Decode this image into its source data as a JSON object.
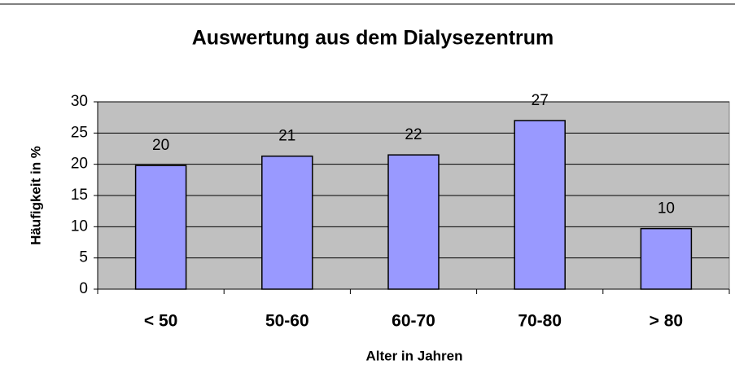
{
  "chart_data": {
    "type": "bar",
    "title": "Auswertung aus dem Dialysezentrum",
    "xlabel": "Alter in Jahren",
    "ylabel": "Häufigkeit in %",
    "categories": [
      "< 50",
      "50-60",
      "60-70",
      "70-80",
      "> 80"
    ],
    "values": [
      19.8,
      21.3,
      21.5,
      27,
      9.7
    ],
    "value_labels": [
      "20",
      "21",
      "22",
      "27",
      "10"
    ],
    "color": "#9999ff",
    "background": "#c0c0c0",
    "ylim": [
      0,
      30
    ],
    "yticks": [
      0,
      5,
      10,
      15,
      20,
      25,
      30
    ],
    "grid": true
  }
}
